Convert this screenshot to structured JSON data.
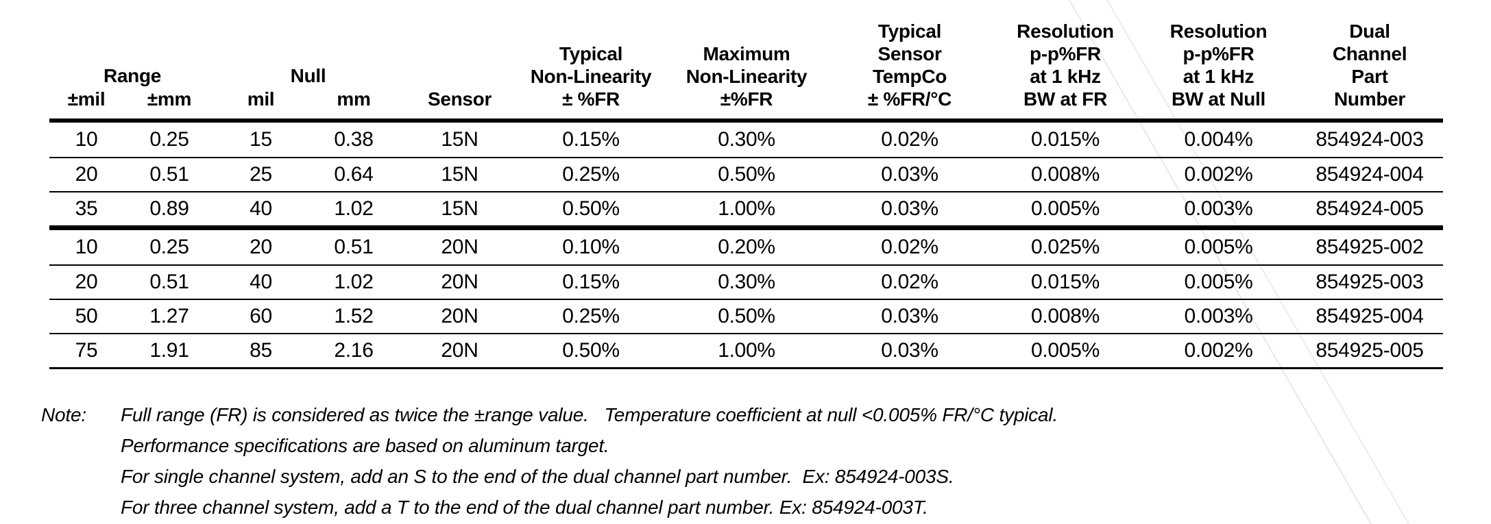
{
  "document": {
    "colors": {
      "text": "#000000",
      "rules": "#000000",
      "background": "#ffffff",
      "artifact_line": "#e8e8e4"
    },
    "table": {
      "header": {
        "groups": [
          {
            "id": "range",
            "label": "Range",
            "col_start": 1,
            "col_end": 2
          },
          {
            "id": "null",
            "label": "Null",
            "col_start": 3,
            "col_end": 4
          }
        ],
        "columns": [
          {
            "id": "range-mil",
            "in_group": true,
            "lines": [
              "±mil"
            ]
          },
          {
            "id": "range-mm",
            "in_group": true,
            "lines": [
              "±mm"
            ]
          },
          {
            "id": "null-mil",
            "in_group": true,
            "lines": [
              "mil"
            ]
          },
          {
            "id": "null-mm",
            "in_group": true,
            "lines": [
              "mm"
            ]
          },
          {
            "id": "sensor",
            "in_group": false,
            "lines": [
              "Sensor"
            ]
          },
          {
            "id": "typical-non-linearity",
            "in_group": false,
            "lines": [
              "Typical",
              "Non-Linearity",
              "± %FR"
            ]
          },
          {
            "id": "maximum-non-linearity",
            "in_group": false,
            "lines": [
              "Maximum",
              "Non-Linearity",
              "±%FR"
            ]
          },
          {
            "id": "typical-sensor-tempco",
            "in_group": false,
            "lines": [
              "Typical",
              "Sensor",
              "TempCo",
              "± %FR/°C"
            ]
          },
          {
            "id": "resolution-bw-at-fr",
            "in_group": false,
            "lines": [
              "Resolution",
              "p-p%FR",
              "at 1 kHz",
              "BW at FR"
            ]
          },
          {
            "id": "resolution-bw-at-null",
            "in_group": false,
            "lines": [
              "Resolution",
              "p-p%FR",
              "at 1 kHz",
              "BW at Null"
            ]
          },
          {
            "id": "dual-channel-part-number",
            "in_group": false,
            "lines": [
              "Dual",
              "Channel",
              "Part",
              "Number"
            ]
          }
        ]
      },
      "row_groups": [
        {
          "sensor": "15N",
          "rows": [
            [
              "10",
              "0.25",
              "15",
              "0.38",
              "15N",
              "0.15%",
              "0.30%",
              "0.02%",
              "0.015%",
              "0.004%",
              "854924-003"
            ],
            [
              "20",
              "0.51",
              "25",
              "0.64",
              "15N",
              "0.25%",
              "0.50%",
              "0.03%",
              "0.008%",
              "0.002%",
              "854924-004"
            ],
            [
              "35",
              "0.89",
              "40",
              "1.02",
              "15N",
              "0.50%",
              "1.00%",
              "0.03%",
              "0.005%",
              "0.003%",
              "854924-005"
            ]
          ]
        },
        {
          "sensor": "20N",
          "rows": [
            [
              "10",
              "0.25",
              "20",
              "0.51",
              "20N",
              "0.10%",
              "0.20%",
              "0.02%",
              "0.025%",
              "0.005%",
              "854925-002"
            ],
            [
              "20",
              "0.51",
              "40",
              "1.02",
              "20N",
              "0.15%",
              "0.30%",
              "0.02%",
              "0.015%",
              "0.005%",
              "854925-003"
            ],
            [
              "50",
              "1.27",
              "60",
              "1.52",
              "20N",
              "0.25%",
              "0.50%",
              "0.03%",
              "0.008%",
              "0.003%",
              "854925-004"
            ],
            [
              "75",
              "1.91",
              "85",
              "2.16",
              "20N",
              "0.50%",
              "1.00%",
              "0.03%",
              "0.005%",
              "0.002%",
              "854925-005"
            ]
          ]
        }
      ]
    },
    "notes": {
      "label": "Note:",
      "lines": [
        "Full range (FR) is considered as twice the ±range value.   Temperature coefficient at null <0.005% FR/°C typical.",
        "Performance specifications are based on aluminum target.",
        "For single channel system, add an S to the end of the dual channel part number.  Ex: 854924-003S.",
        "For three channel system, add a T to the end of the dual channel part number. Ex: 854924-003T."
      ]
    }
  }
}
